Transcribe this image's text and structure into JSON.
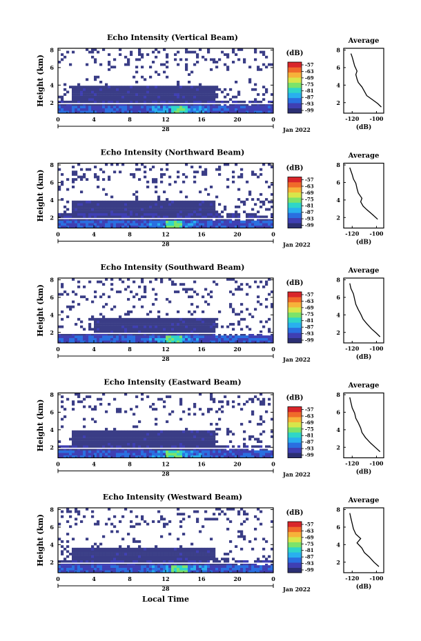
{
  "figure": {
    "xlabel": "Local Time",
    "date_label": "Jan 2022",
    "day_label": "28",
    "colorbar_unit": "(dB)",
    "average_title": "Average",
    "average_xlabel": "(dB)",
    "height_label": "Height (km)"
  },
  "chart_data": [
    {
      "type": "heatmap",
      "title": "Echo Intensity (Vertical Beam)",
      "ylabel": "Height (km)",
      "x_ticks": [
        "0",
        "4",
        "8",
        "12",
        "16",
        "20",
        "0"
      ],
      "xlim": [
        0,
        24
      ],
      "y_ticks": [
        "2",
        "4",
        "6",
        "8"
      ],
      "ylim": [
        0.8,
        8.2
      ],
      "colorbar": {
        "label": "(dB)",
        "ticks": [
          "-57",
          "-63",
          "-69",
          "-75",
          "-81",
          "-87",
          "-93",
          "-99"
        ]
      },
      "layers": {
        "dense_top_km": 3.8,
        "mid_band_km": [
          2.1,
          3.8
        ],
        "intense_core_hour": 13.5
      },
      "average_profile": {
        "title": "Average",
        "xlabel": "(dB)",
        "x_ticks": [
          "-120",
          "-100"
        ],
        "y_ticks": [
          "2",
          "4",
          "6",
          "8"
        ],
        "xlim": [
          -127,
          -94
        ],
        "ylim": [
          0.8,
          8.2
        ],
        "x": [
          -96,
          -99,
          -103,
          -108,
          -110,
          -112,
          -115,
          -116,
          -117,
          -116,
          -118,
          -119,
          -120,
          -121
        ],
        "y": [
          1.5,
          1.9,
          2.3,
          2.8,
          3.3,
          3.8,
          4.3,
          4.7,
          5.2,
          5.6,
          6.2,
          6.7,
          7.2,
          7.6
        ]
      }
    },
    {
      "type": "heatmap",
      "title": "Echo Intensity (Northward Beam)",
      "ylabel": "Height (km)",
      "x_ticks": [
        "0",
        "4",
        "8",
        "12",
        "16",
        "20",
        "0"
      ],
      "xlim": [
        0,
        24
      ],
      "y_ticks": [
        "2",
        "4",
        "6",
        "8"
      ],
      "ylim": [
        0.8,
        8.2
      ],
      "colorbar": {
        "label": "(dB)",
        "ticks": [
          "-57",
          "-63",
          "-69",
          "-75",
          "-81",
          "-87",
          "-93",
          "-99"
        ]
      },
      "layers": {
        "dense_top_km": 3.8,
        "mid_band_km": [
          2.4,
          3.8
        ],
        "intense_core_hour": 13
      },
      "average_profile": {
        "title": "Average",
        "xlabel": "(dB)",
        "x_ticks": [
          "-120",
          "-100"
        ],
        "y_ticks": [
          "2",
          "4",
          "6",
          "8"
        ],
        "xlim": [
          -127,
          -94
        ],
        "ylim": [
          0.8,
          8.2
        ],
        "x": [
          -99,
          -103,
          -108,
          -111,
          -113,
          -112,
          -115,
          -116,
          -117,
          -119,
          -120,
          -121,
          -122
        ],
        "y": [
          1.8,
          2.3,
          2.9,
          3.3,
          3.8,
          4.2,
          4.8,
          5.3,
          5.9,
          6.4,
          6.9,
          7.3,
          7.7
        ]
      }
    },
    {
      "type": "heatmap",
      "title": "Echo Intensity (Southward Beam)",
      "ylabel": "Height (km)",
      "x_ticks": [
        "0",
        "4",
        "8",
        "12",
        "16",
        "20",
        "0"
      ],
      "xlim": [
        0,
        24
      ],
      "y_ticks": [
        "2",
        "4",
        "6",
        "8"
      ],
      "ylim": [
        0.8,
        8.2
      ],
      "colorbar": {
        "label": "(dB)",
        "ticks": [
          "-57",
          "-63",
          "-69",
          "-75",
          "-81",
          "-87",
          "-93",
          "-99"
        ]
      },
      "layers": {
        "dense_top_km": 3.6,
        "mid_band_km": [
          2.0,
          3.6
        ],
        "intense_core_hour": 13
      },
      "average_profile": {
        "title": "Average",
        "xlabel": "(dB)",
        "x_ticks": [
          "-120",
          "-100"
        ],
        "y_ticks": [
          "2",
          "4",
          "6",
          "8"
        ],
        "xlim": [
          -127,
          -94
        ],
        "ylim": [
          0.8,
          8.2
        ],
        "x": [
          -97,
          -100,
          -104,
          -108,
          -111,
          -113,
          -115,
          -117,
          -118,
          -119,
          -121,
          -122
        ],
        "y": [
          1.5,
          1.9,
          2.4,
          3.0,
          3.5,
          4.1,
          4.6,
          5.2,
          5.8,
          6.4,
          7.0,
          7.6
        ]
      }
    },
    {
      "type": "heatmap",
      "title": "Echo Intensity (Eastward Beam)",
      "ylabel": "Height (km)",
      "x_ticks": [
        "0",
        "4",
        "8",
        "12",
        "16",
        "20",
        "0"
      ],
      "xlim": [
        0,
        24
      ],
      "y_ticks": [
        "2",
        "4",
        "6",
        "8"
      ],
      "ylim": [
        0.8,
        8.2
      ],
      "colorbar": {
        "label": "(dB)",
        "ticks": [
          "-57",
          "-63",
          "-69",
          "-75",
          "-81",
          "-87",
          "-93",
          "-99"
        ]
      },
      "layers": {
        "dense_top_km": 3.9,
        "mid_band_km": [
          2.2,
          3.9
        ],
        "intense_core_hour": 13
      },
      "average_profile": {
        "title": "Average",
        "xlabel": "(dB)",
        "x_ticks": [
          "-120",
          "-100"
        ],
        "y_ticks": [
          "2",
          "4",
          "6",
          "8"
        ],
        "xlim": [
          -127,
          -94
        ],
        "ylim": [
          0.8,
          8.2
        ],
        "x": [
          -97,
          -101,
          -105,
          -109,
          -112,
          -113,
          -115,
          -117,
          -118,
          -120,
          -121,
          -122
        ],
        "y": [
          1.5,
          2.0,
          2.5,
          3.1,
          3.7,
          4.2,
          4.8,
          5.3,
          5.9,
          6.5,
          7.1,
          7.7
        ]
      }
    },
    {
      "type": "heatmap",
      "title": "Echo Intensity (Westward Beam)",
      "ylabel": "Height (km)",
      "x_ticks": [
        "0",
        "4",
        "8",
        "12",
        "16",
        "20",
        "0"
      ],
      "xlim": [
        0,
        24
      ],
      "y_ticks": [
        "2",
        "4",
        "6",
        "8"
      ],
      "ylim": [
        0.8,
        8.2
      ],
      "colorbar": {
        "label": "(dB)",
        "ticks": [
          "-57",
          "-63",
          "-69",
          "-75",
          "-81",
          "-87",
          "-93",
          "-99"
        ]
      },
      "layers": {
        "dense_top_km": 3.6,
        "mid_band_km": [
          2.2,
          3.6
        ],
        "intense_core_hour": 13.5
      },
      "average_profile": {
        "title": "Average",
        "xlabel": "(dB)",
        "x_ticks": [
          "-120",
          "-100"
        ],
        "y_ticks": [
          "2",
          "4",
          "6",
          "8"
        ],
        "xlim": [
          -127,
          -94
        ],
        "ylim": [
          0.8,
          8.2
        ],
        "x": [
          -98,
          -102,
          -106,
          -110,
          -112,
          -116,
          -113,
          -117,
          -119,
          -120,
          -121,
          -122
        ],
        "y": [
          1.5,
          2.0,
          2.6,
          3.1,
          3.6,
          4.2,
          4.7,
          5.2,
          5.8,
          6.4,
          7.0,
          7.6
        ]
      }
    }
  ]
}
